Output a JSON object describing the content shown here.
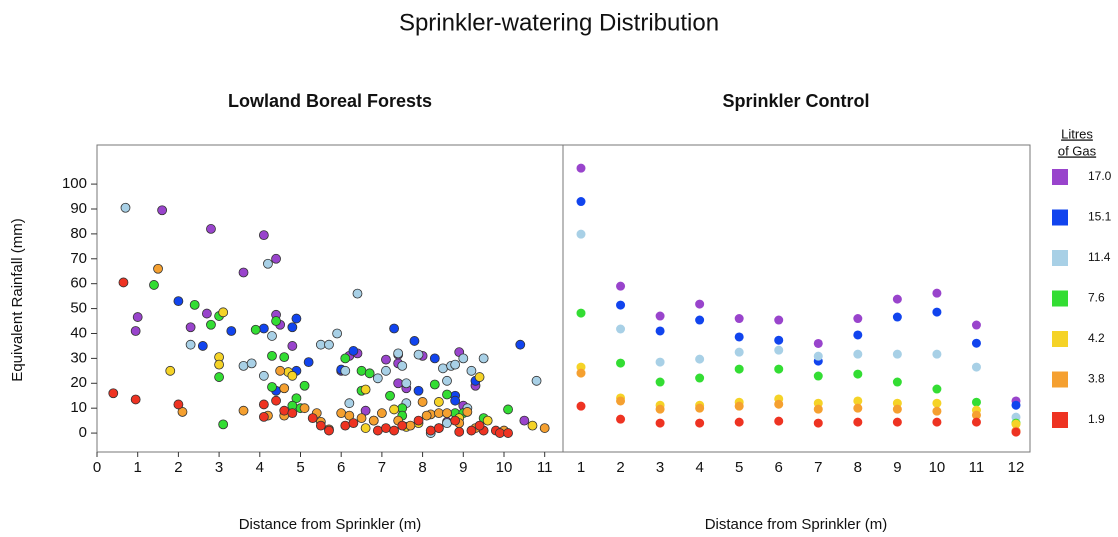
{
  "title": "Sprinkler-watering Distribution",
  "legend_title": [
    "Litres",
    "of Gas"
  ],
  "chart_data": [
    {
      "type": "scatter",
      "title": "Lowland Boreal Forests",
      "x_label": "Distance from Sprinkler (m)",
      "y_label": "Equivalent Rainfall (mm)",
      "xlim": [
        0,
        11.45
      ],
      "ylim": [
        -7.6,
        115.7
      ],
      "xticks": [
        0,
        1,
        2,
        3,
        4,
        5,
        6,
        7,
        8,
        9,
        10,
        11
      ],
      "yticks": [
        0,
        10,
        20,
        30,
        40,
        50,
        60,
        70,
        80,
        90,
        100
      ],
      "series": [
        {
          "color": "#9944cc",
          "x": [
            1.0,
            0.95,
            1.6,
            2.3,
            2.8,
            2.7,
            3.6,
            4.1,
            4.4,
            4.4,
            4.8,
            4.5,
            6.0,
            6.2,
            6.4,
            7.1,
            7.4,
            7.6,
            7.4,
            8.0,
            8.9,
            9.3,
            9.0,
            10.5,
            8.6,
            6.6,
            7.4
          ],
          "values": [
            46.6,
            41,
            89.5,
            42.5,
            82,
            48,
            64.5,
            79.5,
            70,
            47.5,
            35,
            43.5,
            25,
            31,
            32,
            29.5,
            20,
            18,
            28,
            31,
            32.5,
            19,
            11,
            5,
            4.5,
            9,
            31.5
          ]
        },
        {
          "color": "#1144ee",
          "x": [
            2.0,
            2.6,
            3.3,
            4.1,
            4.9,
            4.8,
            5.2,
            6.3,
            7.3,
            7.8,
            8.3,
            8.8,
            8.8,
            10.4,
            9.3,
            7.9,
            4.4,
            6.0,
            4.9
          ],
          "values": [
            53,
            35,
            41,
            42,
            46,
            42.5,
            28.5,
            33,
            42,
            37,
            30,
            15,
            13,
            35.5,
            21,
            17,
            17,
            25.5,
            25
          ]
        },
        {
          "color": "#a8d0e6",
          "x": [
            0.7,
            2.3,
            3.6,
            3.8,
            4.2,
            4.3,
            4.1,
            5.5,
            5.7,
            5.9,
            6.1,
            6.4,
            6.9,
            7.1,
            7.4,
            7.5,
            7.6,
            7.9,
            8.5,
            8.7,
            8.8,
            9.0,
            9.2,
            9.5,
            8.6,
            9.1,
            10.8,
            8.2,
            8.4,
            8.6,
            7.6,
            6.2
          ],
          "values": [
            90.5,
            35.5,
            27,
            28,
            68,
            39,
            23,
            35.5,
            35.5,
            40,
            25,
            56,
            22,
            25,
            32,
            27,
            20,
            31.5,
            26,
            27,
            27.5,
            30,
            25,
            30,
            21,
            10,
            21,
            0,
            2,
            4,
            12,
            12
          ]
        },
        {
          "color": "#33dd33",
          "x": [
            1.4,
            2.4,
            2.8,
            3.0,
            3.0,
            3.1,
            3.9,
            4.3,
            4.3,
            4.4,
            4.6,
            4.9,
            5.1,
            6.1,
            6.5,
            6.7,
            6.5,
            7.2,
            7.5,
            7.5,
            8.3,
            8.6,
            8.8,
            9.0,
            9.5,
            10.1,
            5.0,
            4.8
          ],
          "values": [
            59.5,
            51.5,
            43.5,
            47,
            22.5,
            3.5,
            41.5,
            31,
            18.5,
            45,
            30.5,
            14,
            19,
            30,
            25,
            24,
            17,
            15,
            10,
            7,
            19.5,
            15.5,
            8,
            8,
            6,
            9.5,
            10,
            11
          ]
        },
        {
          "color": "#f5d327",
          "x": [
            1.8,
            3.0,
            3.0,
            3.1,
            4.7,
            4.8,
            6.6,
            6.6,
            7.3,
            7.9,
            8.4,
            8.9,
            9.4,
            9.6,
            10.7,
            6.8,
            7.6
          ],
          "values": [
            25,
            30.5,
            27.5,
            48.5,
            24.5,
            23,
            17.5,
            2,
            9.5,
            4,
            12.5,
            6,
            22.5,
            5,
            3,
            5,
            2.5
          ]
        },
        {
          "color": "#f5a030",
          "x": [
            1.5,
            2.1,
            3.6,
            4.2,
            4.5,
            4.6,
            5.1,
            5.4,
            5.5,
            6.0,
            6.2,
            6.5,
            6.8,
            7.0,
            7.4,
            7.7,
            8.0,
            8.2,
            8.4,
            8.6,
            9.1,
            9.3,
            10.0,
            11.0,
            8.1,
            4.6,
            5.7,
            8.9
          ],
          "values": [
            66,
            8.5,
            9,
            7,
            25,
            18,
            10,
            8,
            4.5,
            8,
            7,
            6,
            5,
            8,
            5,
            3,
            12.5,
            7.5,
            8,
            8,
            8.5,
            2,
            1,
            2,
            7,
            7,
            1.5,
            4
          ]
        },
        {
          "color": "#ee3322",
          "x": [
            0.4,
            0.65,
            0.95,
            2.0,
            4.1,
            4.1,
            4.4,
            4.6,
            4.8,
            5.3,
            5.5,
            5.7,
            6.1,
            6.3,
            6.9,
            7.1,
            7.3,
            7.5,
            7.9,
            8.2,
            8.4,
            8.8,
            9.2,
            9.5,
            9.8,
            9.9,
            10.1,
            9.4,
            8.9
          ],
          "values": [
            16,
            60.5,
            13.5,
            11.5,
            11.5,
            6.5,
            13,
            9,
            8,
            6,
            3,
            1,
            3,
            4,
            1,
            2,
            1,
            3,
            5,
            1,
            2,
            5,
            1,
            1,
            1,
            0,
            0,
            3,
            0.5
          ]
        }
      ]
    },
    {
      "type": "dot",
      "title": "Sprinkler Control",
      "x_label": "Distance from Sprinkler (m)",
      "ylim": [
        -7.6,
        115.7
      ],
      "categories": [
        "1",
        "2",
        "3",
        "4",
        "5",
        "6",
        "7",
        "8",
        "9",
        "10",
        "11",
        "12"
      ],
      "series": [
        {
          "name": "17.0",
          "color": "#9944cc",
          "values": [
            106.4,
            59,
            47,
            51.8,
            46,
            45.4,
            36,
            46,
            53.8,
            56.2,
            43.4,
            12.9
          ]
        },
        {
          "name": "15.1",
          "color": "#1144ee",
          "values": [
            93,
            51.4,
            41,
            45.4,
            38.6,
            37.3,
            28.9,
            39.4,
            46.6,
            48.6,
            36.1,
            11.2
          ]
        },
        {
          "name": "11.4",
          "color": "#a8d0e6",
          "values": [
            79.9,
            41.8,
            28.5,
            29.7,
            32.5,
            33.3,
            30.9,
            31.7,
            31.7,
            31.7,
            26.5,
            6.4
          ]
        },
        {
          "name": "7.6",
          "color": "#33dd33",
          "values": [
            48.2,
            28.1,
            20.5,
            22.1,
            25.7,
            25.7,
            22.9,
            23.7,
            20.5,
            17.7,
            12.4,
            4.0
          ]
        },
        {
          "name": "4.2",
          "color": "#f5d327",
          "values": [
            26.5,
            14.1,
            11.2,
            11.2,
            12.4,
            13.7,
            12.0,
            12.9,
            12.0,
            12.0,
            9.2,
            3.6
          ]
        },
        {
          "name": "3.8",
          "color": "#f5a030",
          "values": [
            24.1,
            12.9,
            9.6,
            10.0,
            10.8,
            11.6,
            9.6,
            10.0,
            9.6,
            8.8,
            7.2,
            0.8
          ]
        },
        {
          "name": "1.9",
          "color": "#ee3322",
          "values": [
            10.8,
            5.6,
            4.0,
            4.0,
            4.4,
            4.8,
            4.0,
            4.4,
            4.4,
            4.4,
            4.4,
            0.4
          ]
        }
      ]
    }
  ]
}
